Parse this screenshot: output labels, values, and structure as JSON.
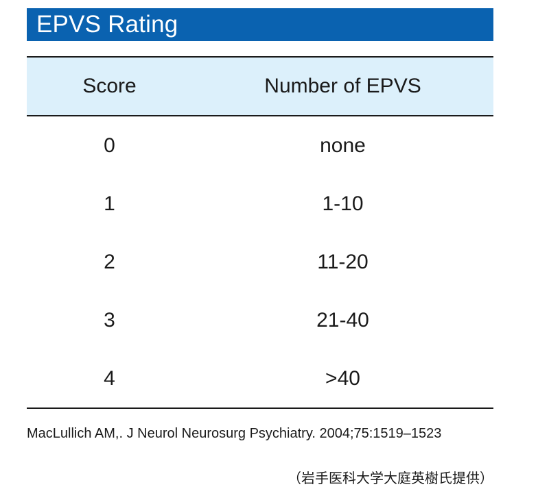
{
  "title": "EPVS Rating",
  "table": {
    "headers": [
      "Score",
      "Number of EPVS"
    ],
    "rows": [
      [
        "0",
        "none"
      ],
      [
        "1",
        "1-10"
      ],
      [
        "2",
        "11-20"
      ],
      [
        "3",
        "21-40"
      ],
      [
        "4",
        ">40"
      ]
    ]
  },
  "citation": "MacLullich AM,. J Neurol Neurosurg Psychiatry. 2004;75:1519–1523",
  "credit": "（岩手医科大学大庭英樹氏提供）",
  "colors": {
    "title_bg": "#0a62b0",
    "header_bg": "#dcf0fb",
    "rule": "#1a1a1a"
  }
}
